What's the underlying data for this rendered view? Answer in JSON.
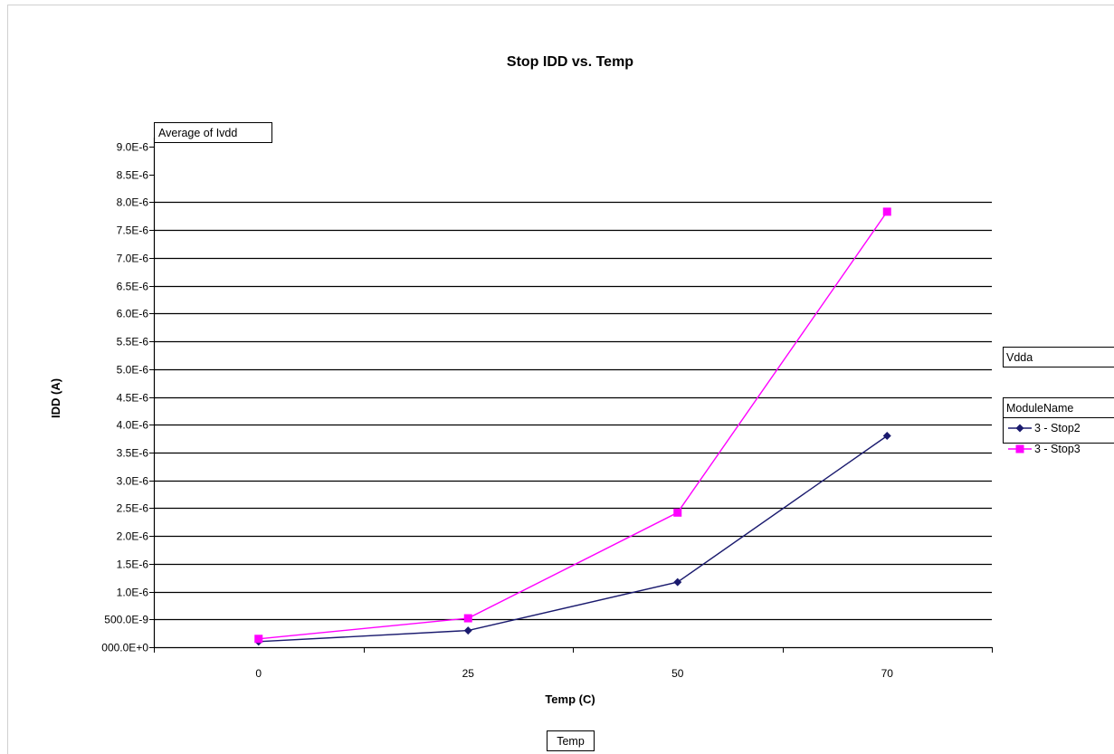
{
  "chart_data": {
    "type": "line",
    "title": "Stop IDD vs. Temp",
    "xlabel": "Temp (C)",
    "ylabel": "IDD (A)",
    "categories": [
      "0",
      "25",
      "50",
      "70"
    ],
    "yticks": [
      "000.0E+0",
      "500.0E-9",
      "1.0E-6",
      "1.5E-6",
      "2.0E-6",
      "2.5E-6",
      "3.0E-6",
      "3.5E-6",
      "4.0E-6",
      "4.5E-6",
      "5.0E-6",
      "5.5E-6",
      "6.0E-6",
      "6.5E-6",
      "7.0E-6",
      "7.5E-6",
      "8.0E-6",
      "8.5E-6",
      "9.0E-6"
    ],
    "ylim": [
      0,
      9e-06
    ],
    "grid": true,
    "legend_position": "right",
    "series": [
      {
        "name": "3 - Stop2",
        "color": "#1a1a6e",
        "marker": "diamond",
        "values": [
          1e-07,
          3e-07,
          1.17e-06,
          3.8e-06
        ]
      },
      {
        "name": "3 - Stop3",
        "color": "#ff00ff",
        "marker": "square",
        "values": [
          1.5e-07,
          5.2e-07,
          2.42e-06,
          7.83e-06
        ]
      }
    ]
  },
  "field_buttons": {
    "data_field": "Average of Ivdd",
    "series_field_1": "Vdda",
    "series_field_2": "ModuleName",
    "category_field": "Temp"
  }
}
